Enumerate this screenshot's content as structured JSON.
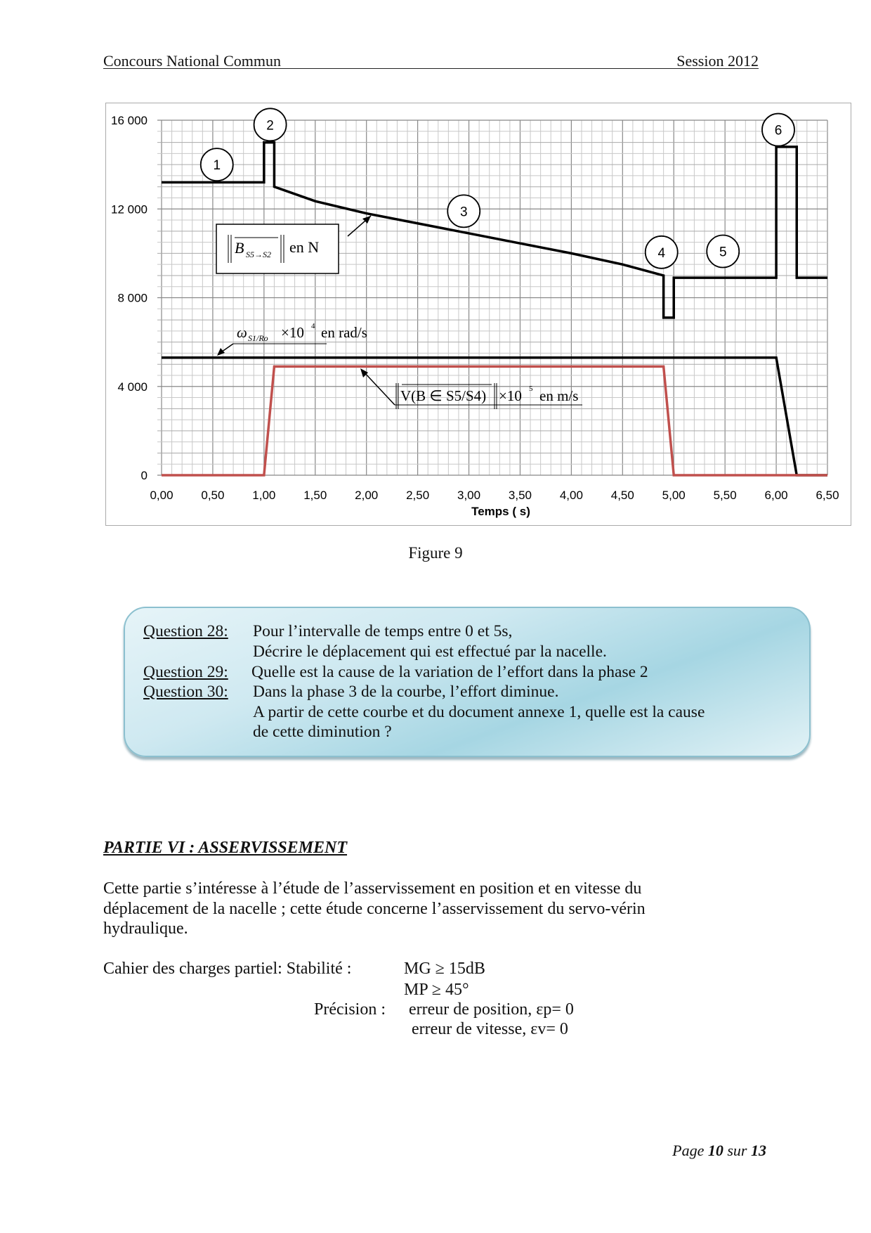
{
  "header": {
    "left": "Concours National Commun",
    "right": "Session 2012"
  },
  "figure_caption": "Figure 9",
  "chart_data": {
    "type": "line",
    "xlabel": "Temps ( s)",
    "ylabel": "",
    "xlim": [
      0,
      6.5
    ],
    "ylim": [
      0,
      16000
    ],
    "x_ticks": [
      "0,00",
      "0,50",
      "1,00",
      "1,50",
      "2,00",
      "2,50",
      "3,00",
      "3,50",
      "4,00",
      "4,50",
      "5,00",
      "5,50",
      "6,00",
      "6,50"
    ],
    "y_ticks": [
      "0",
      "4 000",
      "8 000",
      "12 000",
      "16 000"
    ],
    "y_tick_values": [
      0,
      4000,
      8000,
      12000,
      16000
    ],
    "grid": true,
    "series": [
      {
        "name": "||B S5→S2|| en N",
        "color": "#000000",
        "points": [
          [
            0,
            13200
          ],
          [
            1.0,
            13200
          ],
          [
            1.0,
            15000
          ],
          [
            1.1,
            15000
          ],
          [
            1.1,
            13000
          ],
          [
            1.5,
            12350
          ],
          [
            2.0,
            11800
          ],
          [
            2.5,
            11350
          ],
          [
            3.0,
            10900
          ],
          [
            3.5,
            10450
          ],
          [
            4.0,
            10000
          ],
          [
            4.5,
            9500
          ],
          [
            4.9,
            9000
          ],
          [
            4.9,
            7100
          ],
          [
            5.0,
            7100
          ],
          [
            5.0,
            8900
          ],
          [
            6.0,
            8900
          ],
          [
            6.0,
            14800
          ],
          [
            6.2,
            14800
          ],
          [
            6.2,
            8900
          ],
          [
            6.5,
            8900
          ]
        ]
      },
      {
        "name": "ω S1/Ro ×10⁴ en rad/s",
        "color": "#000000",
        "points": [
          [
            0,
            5300
          ],
          [
            6.0,
            5300
          ],
          [
            6.2,
            0
          ],
          [
            6.5,
            0
          ]
        ]
      },
      {
        "name": "||V(B∈S5/S4)|| ×10⁵ en m/s",
        "color": "#c0504d",
        "points": [
          [
            0,
            0
          ],
          [
            1.0,
            0
          ],
          [
            1.1,
            4900
          ],
          [
            4.9,
            4900
          ],
          [
            5.0,
            0
          ],
          [
            6.5,
            0
          ]
        ]
      }
    ],
    "annotations": [
      {
        "label": "1",
        "x": 0.54,
        "y": 14000
      },
      {
        "label": "2",
        "x": 1.06,
        "y": 15800
      },
      {
        "label": "3",
        "x": 2.95,
        "y": 11900
      },
      {
        "label": "4",
        "x": 4.88,
        "y": 10050
      },
      {
        "label": "5",
        "x": 5.48,
        "y": 10090
      },
      {
        "label": "6",
        "x": 6.02,
        "y": 15570
      }
    ],
    "legend_labels": {
      "force_B": "B",
      "force_sub": "S5→S2",
      "force_unit": "en N",
      "omega": "ω",
      "omega_sub": "S1/Ro",
      "omega_mult": "×10",
      "omega_exp": "4",
      "omega_unit": "en rad/s",
      "vel": "V(B ∈ S5/S4)",
      "vel_mult": "×10",
      "vel_exp": "5",
      "vel_unit": "en m/s"
    }
  },
  "questions": [
    {
      "label": "Question 28:",
      "lines": [
        "Pour l’intervalle de temps entre  0 et 5s,",
        "Décrire le déplacement qui est effectué par la nacelle."
      ]
    },
    {
      "label": "Question 29:",
      "lines": [
        "Quelle est la cause de la variation de l’effort dans la phase 2"
      ]
    },
    {
      "label": "Question 30:",
      "lines": [
        "Dans la phase 3 de la courbe, l’effort diminue.",
        "A partir de cette courbe et du document  annexe 1, quelle est la cause",
        "de cette diminution ?"
      ]
    }
  ],
  "section": {
    "title": "PARTIE VI :  ASSERVISSEMENT",
    "paragraph": [
      "Cette partie s’intéresse à l’étude de l’asservissement en position et en vitesse du",
      "déplacement de la nacelle ; cette étude concerne l’asservissement du servo-vérin",
      "hydraulique."
    ],
    "cahier_label": "Cahier des charges partiel: Stabilité :",
    "mg": "MG ≥ 15dB",
    "mp": "MP ≥ 45°",
    "precision_label": "Précision :",
    "ep": "erreur de position, εp= 0",
    "ev": "erreur de vitesse, εv= 0"
  },
  "footer": {
    "page_word": "Page",
    "page": "10",
    "sur": "sur",
    "total": "13"
  },
  "colors": {
    "velocity": "#c0504d",
    "box_light": "#e6f4f8",
    "box_dark": "#a6d6e3"
  }
}
